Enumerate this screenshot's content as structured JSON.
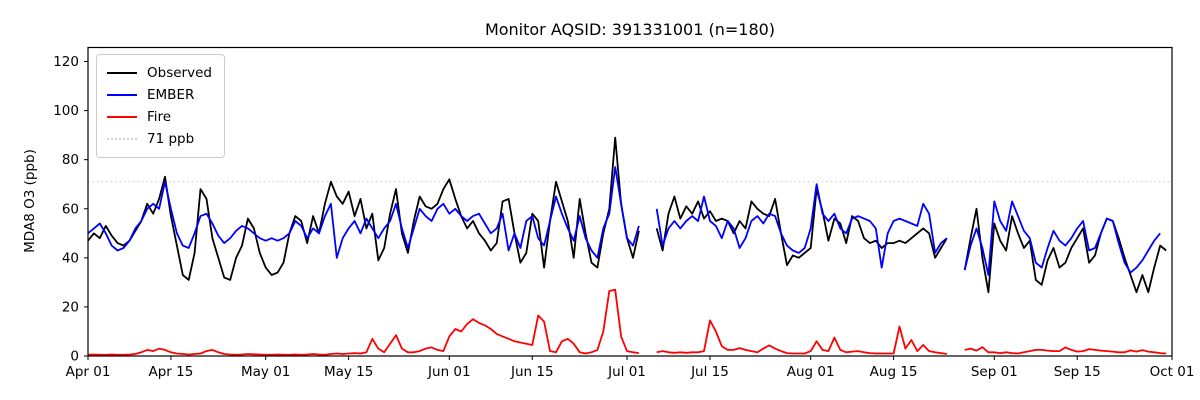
{
  "figure": {
    "title": "Monitor AQSID: 391331001 (n=180)"
  },
  "chart_data": {
    "type": "line",
    "title": "Monitor AQSID: 391331001 (n=180)",
    "ylabel": "MDA8 O3 (ppb)",
    "xlabel": "",
    "ylim": [
      0,
      126
    ],
    "y_ticks": [
      0,
      20,
      40,
      60,
      80,
      100,
      120
    ],
    "x_range_days": 183,
    "x_start_label": "Apr 01",
    "x_end_label": "Oct 01",
    "x_ticks": [
      {
        "label": "Apr 01",
        "day": 0
      },
      {
        "label": "Apr 15",
        "day": 14
      },
      {
        "label": "May 01",
        "day": 30
      },
      {
        "label": "May 15",
        "day": 44
      },
      {
        "label": "Jun 01",
        "day": 61
      },
      {
        "label": "Jun 15",
        "day": 75
      },
      {
        "label": "Jul 01",
        "day": 91
      },
      {
        "label": "Jul 15",
        "day": 105
      },
      {
        "label": "Aug 01",
        "day": 122
      },
      {
        "label": "Aug 15",
        "day": 136
      },
      {
        "label": "Sep 01",
        "day": 153
      },
      {
        "label": "Sep 15",
        "day": 167
      },
      {
        "label": "Oct 01",
        "day": 183
      }
    ],
    "ref_line": {
      "value": 71,
      "label": "71 ppb",
      "color": "#d3d3d3",
      "style": "dotted"
    },
    "grid": false,
    "legend_position": "upper-left",
    "legend": [
      {
        "label": "Observed",
        "color": "#000000",
        "dotted": false
      },
      {
        "label": "EMBER",
        "color": "#0000ff",
        "dotted": false
      },
      {
        "label": "Fire",
        "color": "#ff0000",
        "dotted": false
      },
      {
        "label": "71 ppb",
        "color": "#d3d3d3",
        "dotted": true
      }
    ],
    "series": [
      {
        "name": "Observed",
        "color": "#000000",
        "values": [
          47,
          50,
          48,
          53,
          49,
          46,
          45,
          47,
          51,
          55,
          62,
          58,
          64,
          73,
          57,
          45,
          33,
          31,
          42,
          68,
          64,
          48,
          40,
          32,
          31,
          40,
          45,
          56,
          52,
          42,
          36,
          33,
          34,
          38,
          50,
          57,
          55,
          46,
          57,
          50,
          62,
          71,
          65,
          62,
          67,
          57,
          64,
          52,
          58,
          39,
          44,
          58,
          68,
          50,
          42,
          55,
          65,
          61,
          60,
          62,
          68,
          72,
          64,
          57,
          52,
          55,
          50,
          47,
          43,
          46,
          63,
          64,
          50,
          38,
          42,
          58,
          55,
          36,
          55,
          71,
          63,
          55,
          40,
          64,
          50,
          38,
          36,
          50,
          60,
          89,
          62,
          48,
          40,
          51,
          null,
          null,
          52,
          43,
          58,
          65,
          56,
          61,
          58,
          63,
          56,
          59,
          55,
          56,
          55,
          50,
          55,
          52,
          63,
          60,
          58,
          57,
          64,
          50,
          37,
          41,
          40,
          42,
          44,
          68,
          59,
          47,
          56,
          54,
          46,
          57,
          55,
          48,
          46,
          47,
          44,
          46,
          46,
          47,
          46,
          48,
          50,
          52,
          50,
          40,
          44,
          48,
          null,
          null,
          35,
          48,
          60,
          40,
          26,
          54,
          47,
          43,
          57,
          50,
          44,
          47,
          31,
          29,
          39,
          44,
          36,
          38,
          44,
          48,
          52,
          38,
          41,
          50,
          56,
          55,
          48,
          40,
          33,
          26,
          33,
          26,
          36,
          45,
          43
        ]
      },
      {
        "name": "EMBER",
        "color": "#0000ff",
        "values": [
          50,
          52,
          54,
          50,
          45,
          43,
          44,
          47,
          52,
          55,
          60,
          62,
          60,
          71,
          60,
          50,
          45,
          44,
          50,
          57,
          58,
          54,
          49,
          46,
          48,
          51,
          53,
          52,
          50,
          48,
          47,
          48,
          47,
          48,
          50,
          55,
          53,
          48,
          52,
          50,
          57,
          62,
          40,
          48,
          52,
          55,
          50,
          56,
          52,
          48,
          52,
          55,
          62,
          52,
          44,
          52,
          60,
          57,
          55,
          60,
          62,
          58,
          60,
          57,
          55,
          57,
          58,
          54,
          50,
          52,
          58,
          43,
          50,
          44,
          55,
          57,
          48,
          45,
          55,
          65,
          58,
          52,
          47,
          57,
          48,
          43,
          40,
          52,
          58,
          77,
          62,
          48,
          45,
          53,
          null,
          null,
          60,
          45,
          52,
          55,
          52,
          55,
          57,
          55,
          65,
          55,
          53,
          48,
          55,
          52,
          44,
          48,
          55,
          57,
          54,
          58,
          57,
          50,
          45,
          43,
          42,
          44,
          52,
          70,
          58,
          55,
          58,
          52,
          50,
          56,
          57,
          56,
          55,
          52,
          36,
          50,
          55,
          56,
          55,
          54,
          53,
          62,
          58,
          42,
          46,
          48,
          null,
          null,
          35,
          45,
          52,
          44,
          33,
          63,
          55,
          51,
          63,
          57,
          51,
          48,
          38,
          36,
          44,
          51,
          47,
          45,
          48,
          52,
          55,
          43,
          44,
          50,
          56,
          55,
          46,
          38,
          34,
          36,
          39,
          43,
          47,
          50,
          null
        ]
      },
      {
        "name": "Fire",
        "color": "#ff0000",
        "values": [
          0.5,
          0.6,
          0.5,
          0.5,
          0.6,
          0.5,
          0.5,
          0.6,
          0.8,
          1.5,
          2.5,
          2,
          3,
          2.5,
          1.5,
          1,
          0.8,
          0.6,
          0.8,
          1,
          2,
          2.5,
          1.5,
          0.8,
          0.6,
          0.5,
          0.6,
          0.8,
          0.7,
          0.6,
          0.5,
          0.5,
          0.6,
          0.5,
          0.5,
          0.6,
          0.5,
          0.6,
          0.8,
          0.6,
          0.5,
          0.8,
          1,
          0.8,
          1,
          1.2,
          1,
          1.5,
          7,
          3,
          1.5,
          5,
          8.5,
          3,
          1.5,
          1.5,
          2,
          3,
          3.5,
          2.5,
          2,
          8,
          11,
          10,
          13,
          15,
          13.5,
          12.5,
          11,
          9,
          8,
          7,
          6,
          5.5,
          5,
          4.5,
          16.5,
          14,
          2,
          1.5,
          6,
          7,
          5,
          1.5,
          1,
          1.5,
          2.5,
          10,
          26.5,
          27,
          8,
          2,
          1.5,
          1.2,
          null,
          null,
          1.5,
          2,
          1.5,
          1.3,
          1.5,
          1.3,
          1.5,
          1.5,
          2,
          14.5,
          10,
          4,
          2.5,
          2.5,
          3.2,
          2.5,
          2,
          1.5,
          3,
          4.3,
          3,
          2,
          1.2,
          1,
          1,
          1,
          2,
          6,
          2.5,
          2,
          7.5,
          2.5,
          1.5,
          1.8,
          2,
          1.5,
          1.2,
          1,
          1,
          1,
          1,
          12,
          3,
          6.5,
          2,
          4.5,
          2,
          1.5,
          1.2,
          0.8,
          null,
          null,
          2.5,
          3,
          2.2,
          3.6,
          1.5,
          1.5,
          1.2,
          1.5,
          1.2,
          1,
          1.5,
          2,
          2.5,
          2.5,
          2.2,
          2,
          2,
          3.5,
          2.5,
          1.8,
          2,
          2.8,
          2.5,
          2.2,
          2,
          1.8,
          1.5,
          1.5,
          2.3,
          1.8,
          2.4,
          1.8,
          1.5,
          1.2,
          1
        ]
      }
    ]
  }
}
